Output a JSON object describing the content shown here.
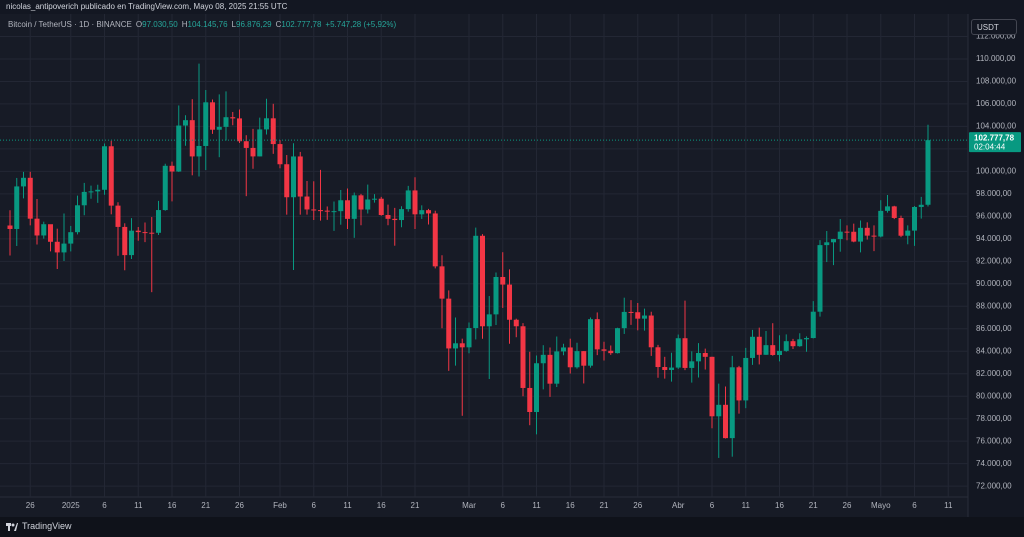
{
  "header": {
    "byline": "nicolas_antipoverich publicado en TradingView.com, Mayo 08, 2025 21:55 UTC",
    "symbol": "Bitcoin / TetherUS · 1D · BINANCE",
    "fields": [
      {
        "key": "O",
        "value": "97.030,50"
      },
      {
        "key": "H",
        "value": "104.145,76"
      },
      {
        "key": "L",
        "value": "96.876,29"
      },
      {
        "key": "C",
        "value": "102.777,78"
      }
    ],
    "change": "+5.747,28 (+5,92%)",
    "currency_button": "USDT"
  },
  "footer": {
    "brand": "TradingView"
  },
  "chart_data": {
    "type": "candlestick",
    "up_color": "#089981",
    "down_color": "#f23645",
    "grid": true,
    "last_value_label": "102.777,78",
    "countdown": "02:04:44",
    "ylim": [
      69700,
      114000
    ],
    "yticks": [
      {
        "value": 72000,
        "label": "72.000,00"
      },
      {
        "value": 74000,
        "label": "74.000,00"
      },
      {
        "value": 76000,
        "label": "76.000,00"
      },
      {
        "value": 78000,
        "label": "78.000,00"
      },
      {
        "value": 80000,
        "label": "80.000,00"
      },
      {
        "value": 82000,
        "label": "82.000,00"
      },
      {
        "value": 84000,
        "label": "84.000,00"
      },
      {
        "value": 86000,
        "label": "86.000,00"
      },
      {
        "value": 88000,
        "label": "88.000,00"
      },
      {
        "value": 90000,
        "label": "90.000,00"
      },
      {
        "value": 92000,
        "label": "92.000,00"
      },
      {
        "value": 94000,
        "label": "94.000,00"
      },
      {
        "value": 96000,
        "label": "96.000,00"
      },
      {
        "value": 98000,
        "label": "98.000,00"
      },
      {
        "value": 100000,
        "label": "100.000,00"
      },
      {
        "value": 102000,
        "label": "102.000,00"
      },
      {
        "value": 104000,
        "label": "104.000,00"
      },
      {
        "value": 106000,
        "label": "106.000,00"
      },
      {
        "value": 108000,
        "label": "108.000,00"
      },
      {
        "value": 110000,
        "label": "110.000,00"
      },
      {
        "value": 112000,
        "label": "112.000,00"
      }
    ],
    "categories": [
      null,
      null,
      null,
      "26",
      null,
      null,
      null,
      null,
      null,
      "2025",
      null,
      null,
      null,
      null,
      "6",
      null,
      null,
      null,
      null,
      "11",
      null,
      null,
      null,
      null,
      "16",
      null,
      null,
      null,
      null,
      "21",
      null,
      null,
      null,
      null,
      "26",
      null,
      null,
      null,
      null,
      null,
      "Feb",
      null,
      null,
      null,
      null,
      "6",
      null,
      null,
      null,
      null,
      "11",
      null,
      null,
      null,
      null,
      "16",
      null,
      null,
      null,
      null,
      "21",
      null,
      null,
      null,
      null,
      null,
      null,
      null,
      "Mar",
      null,
      null,
      null,
      null,
      "6",
      null,
      null,
      null,
      null,
      "11",
      null,
      null,
      null,
      null,
      "16",
      null,
      null,
      null,
      null,
      "21",
      null,
      null,
      null,
      null,
      "26",
      null,
      null,
      null,
      null,
      null,
      "Abr",
      null,
      null,
      null,
      null,
      "6",
      null,
      null,
      null,
      null,
      "11",
      null,
      null,
      null,
      null,
      "16",
      null,
      null,
      null,
      null,
      "21",
      null,
      null,
      null,
      null,
      "26",
      null,
      null,
      null,
      null,
      "Mayo",
      null,
      null,
      null,
      null,
      "6",
      null,
      null,
      null,
      null,
      "11"
    ],
    "open": [
      95186,
      94877,
      98663,
      99429,
      95792,
      94299,
      95300,
      93738,
      92792,
      93576,
      94591,
      96984,
      98174,
      98220,
      98363,
      102235,
      96954,
      95060,
      92552,
      94726,
      94599,
      94545,
      94536,
      96560,
      100497,
      99987,
      104077,
      104556,
      101331,
      102260,
      106143,
      103706,
      103960,
      104820,
      104714,
      102682,
      102087,
      101332,
      103733,
      104722,
      102429,
      100635,
      97700,
      101328,
      97763,
      96613,
      96554,
      96506,
      96445,
      96462,
      97430,
      95778,
      97869,
      96608,
      97500,
      97569,
      96118,
      95780,
      95671,
      96644,
      98305,
      96181,
      96551,
      96258,
      91552,
      88680,
      84250,
      84708,
      84349,
      86064,
      94270,
      86220,
      87281,
      90606,
      89931,
      86801,
      86222,
      80734,
      78595,
      82932,
      83680,
      81115,
      83983,
      84338,
      82574,
      84010,
      82715,
      86854,
      84167,
      84043,
      83832,
      86054,
      87498,
      87471,
      86900,
      87177,
      84353,
      82597,
      82334,
      82548,
      85159,
      82516,
      83102,
      83843,
      83504,
      78214,
      79235,
      76272,
      82573,
      79626,
      83404,
      85287,
      83684,
      84542,
      83668,
      84033,
      84895,
      84450,
      85063,
      85174,
      87518,
      93442,
      93691,
      93980,
      94638,
      94629,
      93754,
      94979,
      94285,
      94207,
      96489,
      96887,
      95856,
      94277,
      94733,
      96834,
      97030.5,
      null,
      null,
      null
    ],
    "high": [
      96538,
      99416,
      99960,
      99963,
      97544,
      95525,
      95174,
      94903,
      96250,
      95150,
      97839,
      98976,
      98734,
      98813,
      102482,
      102724,
      97258,
      95382,
      95837,
      95050,
      95450,
      95940,
      97371,
      100681,
      100866,
      105865,
      104988,
      106422,
      109588,
      107240,
      106394,
      106850,
      107120,
      105286,
      105500,
      103220,
      103783,
      104782,
      106457,
      106012,
      102783,
      101456,
      102500,
      101732,
      99149,
      99120,
      100137,
      96880,
      97323,
      98345,
      98478,
      98119,
      98000,
      98826,
      97972,
      97732,
      97046,
      96753,
      96899,
      98711,
      99475,
      96980,
      96670,
      96500,
      92540,
      89414,
      87000,
      85120,
      86558,
      95000,
      94416,
      88911,
      91000,
      92810,
      91283,
      86897,
      86500,
      83955,
      83617,
      84539,
      84336,
      85310,
      84672,
      85117,
      84756,
      84021,
      87000,
      87453,
      84850,
      84513,
      86094,
      88765,
      88542,
      88292,
      87786,
      87515,
      84567,
      83505,
      83870,
      85487,
      88500,
      83998,
      84720,
      84234,
      83505,
      81119,
      80867,
      83588,
      82700,
      84300,
      85905,
      86100,
      85799,
      86496,
      85428,
      85500,
      85106,
      85600,
      85320,
      88460,
      93888,
      94696,
      94000,
      95758,
      95199,
      95352,
      95630,
      95469,
      95200,
      97437,
      97895,
      96940,
      96064,
      95199,
      96920,
      97732,
      104145.76,
      null,
      null,
      null
    ],
    "low": [
      92520,
      93365,
      97600,
      95199,
      93500,
      94015,
      92881,
      91317,
      92033,
      92880,
      94392,
      96100,
      97562,
      97200,
      97926,
      96181,
      92500,
      91203,
      92206,
      93831,
      93712,
      89256,
      94346,
      96500,
      97335,
      99950,
      102277,
      99651,
      99550,
      100119,
      103339,
      101262,
      102750,
      104106,
      102520,
      97795,
      100233,
      101328,
      103278,
      101560,
      100279,
      96150,
      91231,
      96150,
      96155,
      95676,
      95620,
      95688,
      94713,
      95256,
      94876,
      94088,
      95205,
      96252,
      97223,
      96055,
      95205,
      93388,
      95029,
      96415,
      94871,
      95770,
      95270,
      91370,
      86050,
      82256,
      82716,
      78258,
      83824,
      85050,
      85117,
      81529,
      86334,
      87852,
      84667,
      85248,
      80000,
      77420,
      76606,
      80607,
      79939,
      80818,
      83639,
      82017,
      82457,
      81134,
      82547,
      83655,
      83175,
      83674,
      83794,
      85541,
      86346,
      85861,
      85837,
      83585,
      81644,
      81565,
      81293,
      82429,
      82320,
      81211,
      81659,
      82373,
      77153,
      74508,
      76240,
      74620,
      78456,
      78936,
      82792,
      82829,
      83678,
      83600,
      83100,
      83953,
      84200,
      84400,
      83950,
      85143,
      87076,
      91935,
      91660,
      92855,
      93870,
      93694,
      92800,
      93934,
      92910,
      94133,
      96328,
      95753,
      94150,
      93514,
      93377,
      95800,
      96876.29,
      null,
      null,
      null
    ],
    "close": [
      94877,
      98663,
      99429,
      95792,
      94299,
      95300,
      93738,
      92792,
      93576,
      94591,
      96984,
      98174,
      98220,
      98363,
      102235,
      96954,
      95060,
      92552,
      94726,
      94599,
      94545,
      94536,
      96560,
      100497,
      99987,
      104077,
      104556,
      101331,
      102260,
      106143,
      103706,
      103960,
      104820,
      104714,
      102682,
      102087,
      101332,
      103733,
      104722,
      102429,
      100635,
      97700,
      101328,
      97763,
      96613,
      96554,
      96506,
      96445,
      96462,
      97430,
      95778,
      97869,
      96608,
      97500,
      97569,
      96118,
      95780,
      95671,
      96644,
      98305,
      96181,
      96551,
      96258,
      91552,
      88680,
      84250,
      84708,
      84349,
      86064,
      94270,
      86220,
      87281,
      90606,
      89931,
      86801,
      86222,
      80734,
      78595,
      82932,
      83680,
      81115,
      83983,
      84338,
      82574,
      84010,
      82715,
      86854,
      84167,
      84043,
      83832,
      86054,
      87498,
      87471,
      86900,
      87177,
      84353,
      82597,
      82334,
      82548,
      85159,
      82516,
      83102,
      83843,
      83504,
      78214,
      79235,
      76272,
      82573,
      79626,
      83404,
      85287,
      83684,
      84542,
      83668,
      84033,
      84895,
      84450,
      85063,
      85174,
      87518,
      93442,
      93691,
      93980,
      94638,
      94629,
      93754,
      94979,
      94285,
      94207,
      96489,
      96887,
      95856,
      94277,
      94733,
      96834,
      97030,
      102777.78,
      null,
      null,
      null
    ]
  }
}
